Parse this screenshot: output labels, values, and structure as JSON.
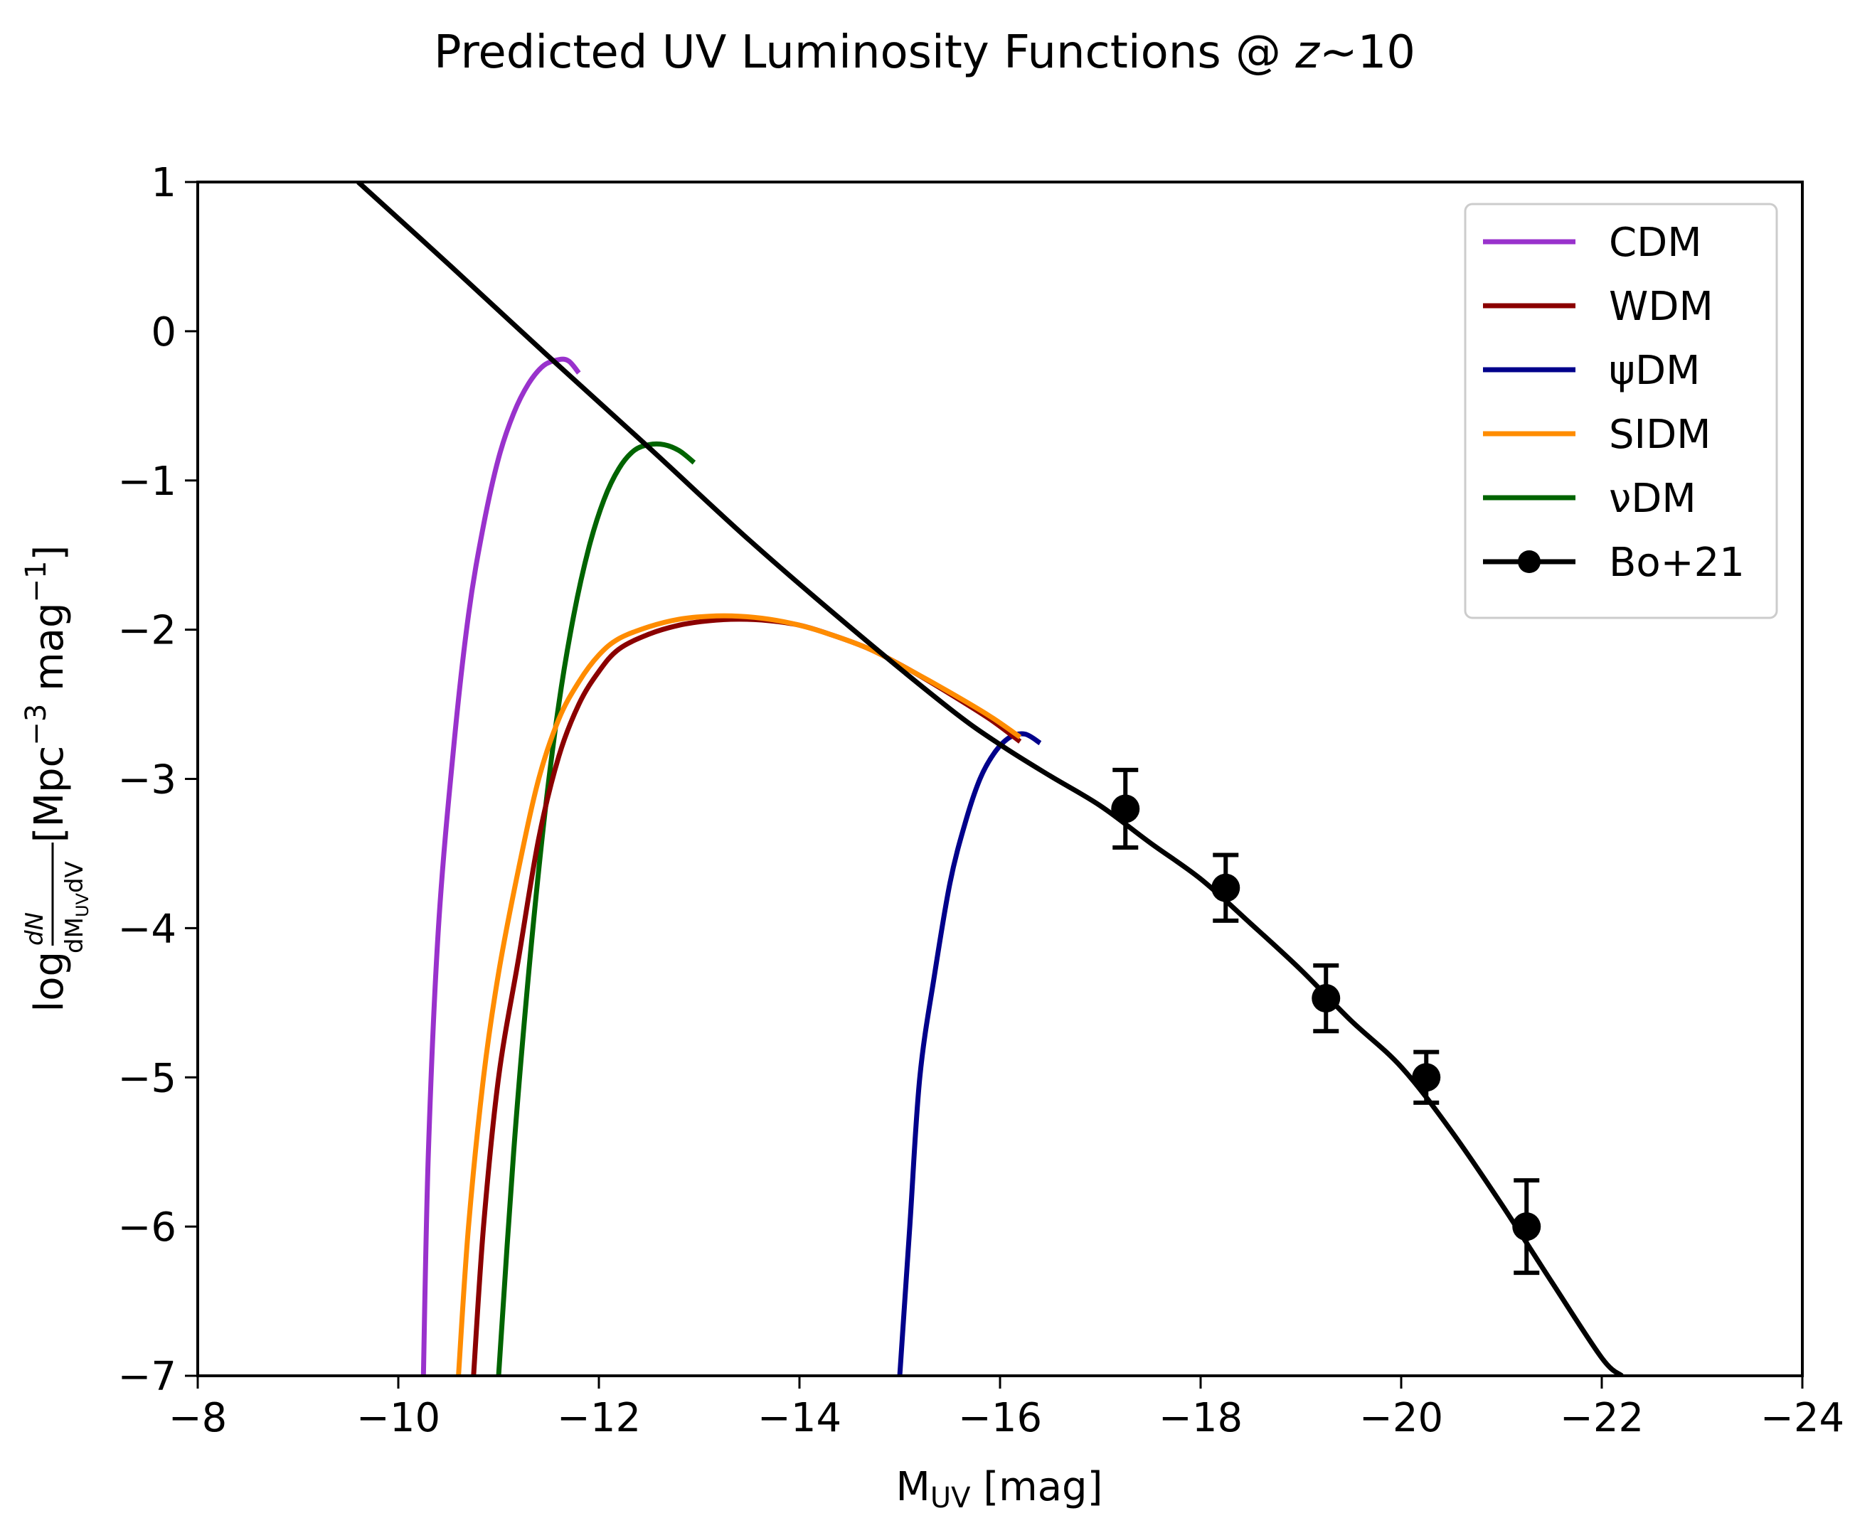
{
  "chart_data": {
    "type": "line",
    "title": "Predicted UV Luminosity Functions @ z∼10",
    "title_prefix": "Predicted UV Luminosity Functions @ ",
    "title_var": "z",
    "title_suffix": "∼10",
    "xlabel": "M",
    "xlabel_sub": "UV",
    "xlabel_suffix": " [mag]",
    "ylabel": "log dN/(dM_UV dV) [Mpc^-3 mag^-1]",
    "xlim": [
      -8,
      -24
    ],
    "ylim": [
      -7,
      1
    ],
    "xticks": [
      -8,
      -10,
      -12,
      -14,
      -16,
      -18,
      -20,
      -22,
      -24
    ],
    "yticks": [
      1,
      0,
      -1,
      -2,
      -3,
      -4,
      -5,
      -6,
      -7
    ],
    "legend_position": "top-right",
    "series": [
      {
        "name": "CDM",
        "color": "#9932cc",
        "x": [
          -10.25,
          -10.3,
          -10.4,
          -10.55,
          -10.7,
          -10.85,
          -11.0,
          -11.15,
          -11.3,
          -11.45,
          -11.6,
          -11.7,
          -11.8
        ],
        "y": [
          -7.0,
          -5.5,
          -4.0,
          -2.8,
          -1.9,
          -1.3,
          -0.85,
          -0.55,
          -0.35,
          -0.23,
          -0.19,
          -0.2,
          -0.28
        ]
      },
      {
        "name": "WDM",
        "color": "#8b0000",
        "x": [
          -10.75,
          -10.85,
          -11.0,
          -11.2,
          -11.4,
          -11.6,
          -11.8,
          -12.0,
          -12.2,
          -12.5,
          -12.8,
          -13.1,
          -13.4,
          -13.7,
          -14.0,
          -14.3,
          -14.7,
          -15.1,
          -15.5,
          -15.9,
          -16.2
        ],
        "y": [
          -7.0,
          -6.0,
          -5.0,
          -4.2,
          -3.4,
          -2.85,
          -2.5,
          -2.28,
          -2.13,
          -2.03,
          -1.97,
          -1.94,
          -1.93,
          -1.94,
          -1.97,
          -2.03,
          -2.13,
          -2.27,
          -2.43,
          -2.6,
          -2.75
        ]
      },
      {
        "name": "ψDM",
        "color": "#00008b",
        "x": [
          -15.0,
          -15.1,
          -15.2,
          -15.35,
          -15.5,
          -15.65,
          -15.8,
          -15.95,
          -16.1,
          -16.25,
          -16.4
        ],
        "y": [
          -7.0,
          -6.0,
          -5.0,
          -4.3,
          -3.7,
          -3.3,
          -3.0,
          -2.82,
          -2.72,
          -2.7,
          -2.76
        ]
      },
      {
        "name": "SIDM",
        "color": "#ff8c00",
        "x": [
          -10.6,
          -10.7,
          -10.85,
          -11.0,
          -11.2,
          -11.4,
          -11.6,
          -11.8,
          -12.0,
          -12.2,
          -12.5,
          -12.8,
          -13.1,
          -13.4,
          -13.7,
          -14.0,
          -14.3,
          -14.7,
          -15.1,
          -15.5,
          -15.9,
          -16.2
        ],
        "y": [
          -7.0,
          -6.0,
          -5.0,
          -4.3,
          -3.6,
          -3.0,
          -2.6,
          -2.35,
          -2.17,
          -2.06,
          -1.98,
          -1.93,
          -1.91,
          -1.91,
          -1.93,
          -1.97,
          -2.03,
          -2.13,
          -2.27,
          -2.42,
          -2.58,
          -2.72
        ]
      },
      {
        "name": "νDM",
        "color": "#006400",
        "x": [
          -11.0,
          -11.15,
          -11.3,
          -11.45,
          -11.6,
          -11.75,
          -11.9,
          -12.05,
          -12.2,
          -12.35,
          -12.5,
          -12.65,
          -12.8,
          -12.95
        ],
        "y": [
          -7.0,
          -5.5,
          -4.3,
          -3.3,
          -2.5,
          -1.9,
          -1.45,
          -1.13,
          -0.92,
          -0.8,
          -0.76,
          -0.76,
          -0.8,
          -0.88
        ]
      },
      {
        "name": "Bo+21",
        "color": "#000000",
        "line": {
          "x": [
            -9.6,
            -10.5,
            -11.5,
            -12.5,
            -13.5,
            -14.5,
            -15.5,
            -16.0,
            -16.5,
            -17.0,
            -17.5,
            -18.0,
            -18.5,
            -19.0,
            -19.5,
            -20.0,
            -20.5,
            -21.0,
            -21.5,
            -22.0,
            -22.2
          ],
          "y": [
            1.0,
            0.45,
            -0.17,
            -0.78,
            -1.4,
            -1.98,
            -2.53,
            -2.77,
            -2.98,
            -3.18,
            -3.43,
            -3.67,
            -3.97,
            -4.28,
            -4.62,
            -4.93,
            -5.36,
            -5.85,
            -6.37,
            -6.88,
            -7.0
          ]
        },
        "points": {
          "x": [
            -17.25,
            -18.25,
            -19.25,
            -20.25,
            -21.25
          ],
          "y": [
            -3.2,
            -3.73,
            -4.47,
            -5.0,
            -6.0
          ],
          "yerr": [
            0.26,
            0.22,
            0.22,
            0.17,
            0.31
          ]
        }
      }
    ]
  }
}
